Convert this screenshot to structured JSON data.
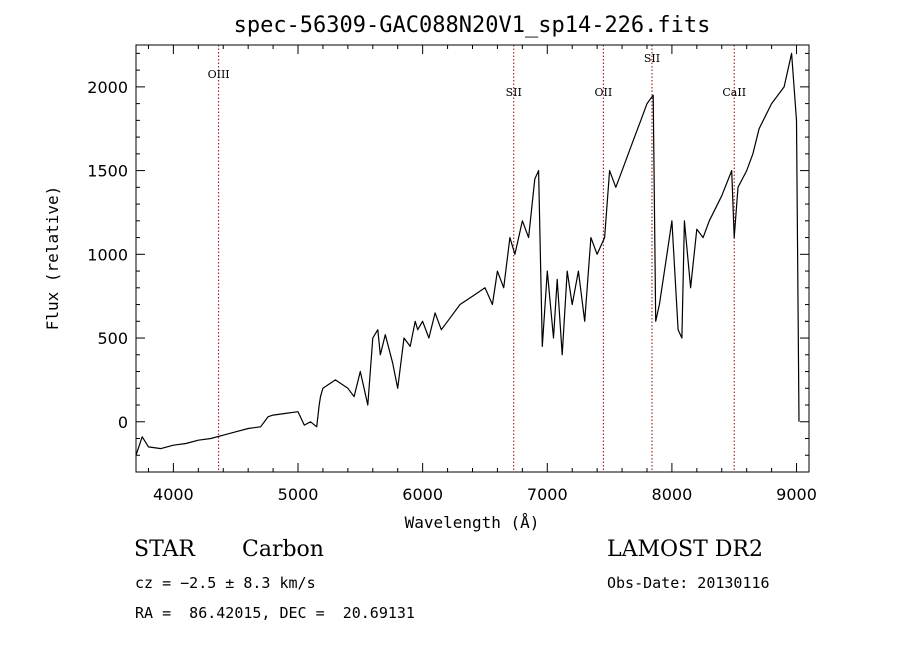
{
  "chart_data": {
    "type": "line",
    "title": "spec-56309-GAC088N20V1_sp14-226.fits",
    "xlabel": "Wavelength (Å)",
    "ylabel": "Flux (relative)",
    "xlim": [
      3700,
      9100
    ],
    "ylim": [
      -300,
      2250
    ],
    "xticks": [
      4000,
      5000,
      6000,
      7000,
      8000,
      9000
    ],
    "yticks": [
      0,
      500,
      1000,
      1500,
      2000
    ],
    "xtick_labels": [
      "4000",
      "5000",
      "6000",
      "7000",
      "8000",
      "9000"
    ],
    "ytick_labels": [
      "0",
      "500",
      "1000",
      "1500",
      "2000"
    ],
    "grid": false,
    "series": [
      {
        "x": [
          3700,
          3750,
          3800,
          3900,
          4000,
          4100,
          4200,
          4300,
          4400,
          4500,
          4600,
          4700,
          4740,
          4760,
          4800,
          4900,
          5000,
          5050,
          5100,
          5150,
          5170,
          5180,
          5200,
          5300,
          5400,
          5450,
          5500,
          5560,
          5600,
          5640,
          5660,
          5700,
          5760,
          5800,
          5850,
          5900,
          5940,
          5960,
          6000,
          6050,
          6100,
          6150,
          6200,
          6300,
          6400,
          6500,
          6560,
          6600,
          6650,
          6700,
          6740,
          6800,
          6850,
          6900,
          6930,
          6960,
          7000,
          7050,
          7080,
          7120,
          7160,
          7200,
          7250,
          7300,
          7350,
          7400,
          7460,
          7500,
          7550,
          7600,
          7650,
          7700,
          7750,
          7800,
          7850,
          7870,
          7900,
          7950,
          8000,
          8050,
          8080,
          8100,
          8150,
          8200,
          8250,
          8300,
          8400,
          8480,
          8500,
          8530,
          8600,
          8650,
          8700,
          8800,
          8900,
          8960,
          9000,
          9020
        ],
        "y": [
          -200,
          -90,
          -150,
          -160,
          -140,
          -130,
          -110,
          -100,
          -80,
          -60,
          -40,
          -30,
          10,
          30,
          40,
          50,
          60,
          -20,
          0,
          -30,
          100,
          150,
          200,
          250,
          200,
          150,
          300,
          100,
          500,
          550,
          400,
          520,
          350,
          200,
          500,
          450,
          600,
          550,
          600,
          500,
          650,
          550,
          600,
          700,
          750,
          800,
          700,
          900,
          800,
          1100,
          1000,
          1200,
          1100,
          1450,
          1500,
          450,
          900,
          500,
          850,
          400,
          900,
          700,
          900,
          600,
          1100,
          1000,
          1100,
          1500,
          1400,
          1500,
          1600,
          1700,
          1800,
          1900,
          1950,
          600,
          700,
          950,
          1200,
          550,
          500,
          1200,
          800,
          1150,
          1100,
          1200,
          1350,
          1500,
          1100,
          1400,
          1500,
          1600,
          1750,
          1900,
          2000,
          2200,
          1800,
          0
        ]
      }
    ],
    "lines": [
      {
        "label": "OIII",
        "x": 4363
      },
      {
        "label": "SII",
        "x": 6731
      },
      {
        "label": "OII",
        "x": 7450
      },
      {
        "label": "SII",
        "x": 7840
      },
      {
        "label": "CaII",
        "x": 8500
      }
    ]
  },
  "info": {
    "object_class": "STAR",
    "object_subclass": "Carbon",
    "survey": "LAMOST DR2",
    "velocity": "cz = −2.5 ± 8.3 km/s",
    "obs_date": "Obs-Date: 20130116",
    "coords": "RA =  86.42015, DEC =  20.69131"
  },
  "colors": {
    "line_color": "#000000",
    "marker_color": "#990000"
  }
}
